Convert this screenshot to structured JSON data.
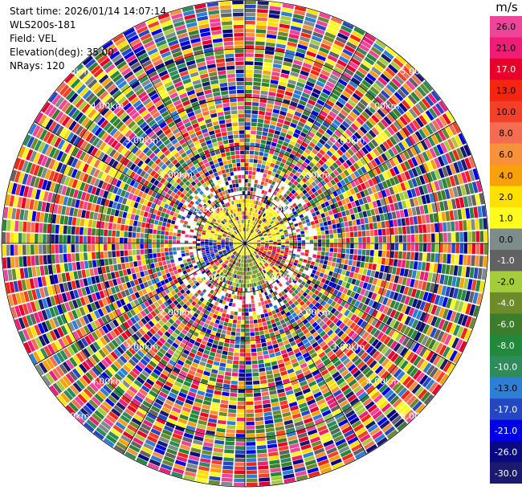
{
  "info": {
    "start_time": "Start time: 2026/01/14 14:07:14",
    "site": "WLS200s-181",
    "field": "Field: VEL",
    "elevation": "Elevation(deg): 35.00",
    "nrays": "NRays: 120"
  },
  "colorbar": {
    "title": "m/s",
    "entries": [
      {
        "label": "26.0",
        "color": "#f0449a"
      },
      {
        "label": "21.0",
        "color": "#ef1d76"
      },
      {
        "label": "17.0",
        "color": "#e8002a"
      },
      {
        "label": "13.0",
        "color": "#f52510"
      },
      {
        "label": "10.0",
        "color": "#f4402a"
      },
      {
        "label": "8.0",
        "color": "#f56d50"
      },
      {
        "label": "6.0",
        "color": "#f8923a"
      },
      {
        "label": "4.0",
        "color": "#f9a10a"
      },
      {
        "label": "2.0",
        "color": "#ffe000"
      },
      {
        "label": "1.0",
        "color": "#fffb1e"
      },
      {
        "label": "0.0",
        "color": "#7f8c8c"
      },
      {
        "label": "-1.0",
        "color": "#626262"
      },
      {
        "label": "-2.0",
        "color": "#a4cd3c"
      },
      {
        "label": "-4.0",
        "color": "#6e8b2c"
      },
      {
        "label": "-6.0",
        "color": "#3c7d2b"
      },
      {
        "label": "-8.0",
        "color": "#21883c"
      },
      {
        "label": "-10.0",
        "color": "#2f8b5c"
      },
      {
        "label": "-13.0",
        "color": "#2f7ed6"
      },
      {
        "label": "-17.0",
        "color": "#2448c4"
      },
      {
        "label": "-21.0",
        "color": "#0000e8"
      },
      {
        "label": "-26.0",
        "color": "#0a0a80"
      },
      {
        "label": "-30.0",
        "color": "#1a1a6e"
      }
    ]
  },
  "chart_data": {
    "type": "heatmap",
    "projection": "polar PPI",
    "field": "VEL",
    "units": "m/s",
    "n_rays": 120,
    "range_rings": [
      "1.00km",
      "2.00km",
      "3.00km",
      "4.00km",
      "5.00km"
    ],
    "range_ring_label_angles_deg": [
      -45,
      45,
      135,
      225
    ],
    "max_range_km": 5.0,
    "spokes": 12,
    "colormap_levels": [
      26.0,
      21.0,
      17.0,
      13.0,
      10.0,
      8.0,
      6.0,
      4.0,
      2.0,
      1.0,
      0.0,
      -1.0,
      -2.0,
      -4.0,
      -6.0,
      -8.0,
      -10.0,
      -13.0,
      -17.0,
      -21.0,
      -26.0,
      -30.0
    ],
    "pattern_note": "mostly noise-like colors at range; near center yellow (+1 to +2) in north sector, green (-2 to -4) in south sector, red (+13) east-southeast, blue (-17) west"
  }
}
